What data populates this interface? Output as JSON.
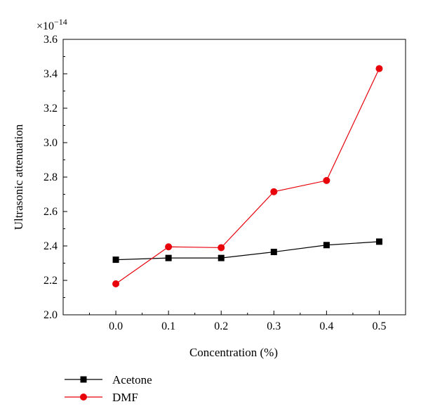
{
  "chart_data": {
    "type": "line",
    "xlabel": "Concentration (%)",
    "ylabel": "Ultrasonic attenuation",
    "y_multiplier": {
      "base": "×10",
      "exponent": "−14"
    },
    "xlim": [
      -0.1,
      0.55
    ],
    "ylim": [
      2.0,
      3.6
    ],
    "x_ticks": [
      0.0,
      0.1,
      0.2,
      0.3,
      0.4,
      0.5
    ],
    "x_tick_labels": [
      "0.0",
      "0.1",
      "0.2",
      "0.3",
      "0.4",
      "0.5"
    ],
    "y_ticks": [
      2.0,
      2.2,
      2.4,
      2.6,
      2.8,
      3.0,
      3.2,
      3.4,
      3.6
    ],
    "y_tick_labels": [
      "2.0",
      "2.2",
      "2.4",
      "2.6",
      "2.8",
      "3.0",
      "3.2",
      "3.4",
      "3.6"
    ],
    "grid": false,
    "legend_position": "bottom-left, below plot",
    "series": [
      {
        "name": "Acetone",
        "color": "#000000",
        "marker": "square",
        "x": [
          0.0,
          0.1,
          0.2,
          0.3,
          0.4,
          0.5
        ],
        "y": [
          2.32,
          2.33,
          2.33,
          2.365,
          2.405,
          2.425
        ]
      },
      {
        "name": "DMF",
        "color": "#e8000b",
        "marker": "circle",
        "x": [
          0.0,
          0.1,
          0.2,
          0.3,
          0.4,
          0.5
        ],
        "y": [
          2.18,
          2.395,
          2.39,
          2.715,
          2.78,
          3.43
        ]
      }
    ]
  }
}
